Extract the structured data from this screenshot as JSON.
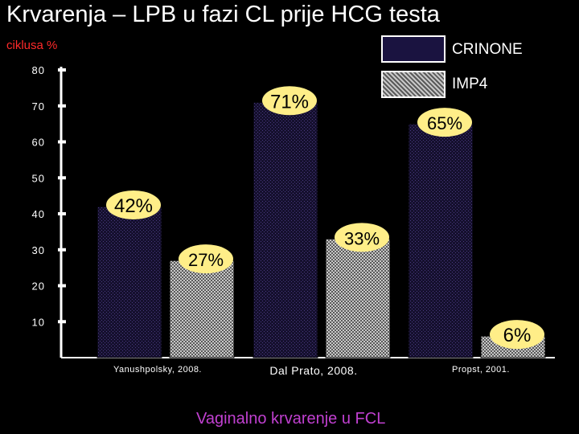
{
  "title": "Krvarenja – LPB u fazi CL prije HCG testa",
  "caption": "Vaginalno krvarenje u FCL",
  "colors": {
    "crinone_fill": "#1a1340",
    "imp4_fill": "#9a9a9a",
    "label_bubble": "#ffee88",
    "ylabel": "#ff2a2a",
    "caption": "#c040d0"
  },
  "chart_data": {
    "type": "bar",
    "title": "Krvarenja – LPB u fazi CL prije HCG testa",
    "ylabel": "ciklusa %",
    "xlabel": "",
    "ylim": [
      0,
      80
    ],
    "yticks": [
      "80",
      "70",
      "60",
      "50",
      "40",
      "30",
      "20",
      "10"
    ],
    "categories": [
      "Yanushpolsky, 2008.",
      "Dal Prato, 2008.",
      "Propst, 2001."
    ],
    "series": [
      {
        "name": "CRINONE",
        "values": [
          42,
          71,
          65
        ],
        "labels": [
          "42%",
          "71%",
          "65%"
        ]
      },
      {
        "name": "IMP4",
        "values": [
          27,
          33,
          6
        ],
        "labels": [
          "27%",
          "33%",
          "6%"
        ]
      }
    ],
    "grid": false,
    "legend": "top-right"
  }
}
